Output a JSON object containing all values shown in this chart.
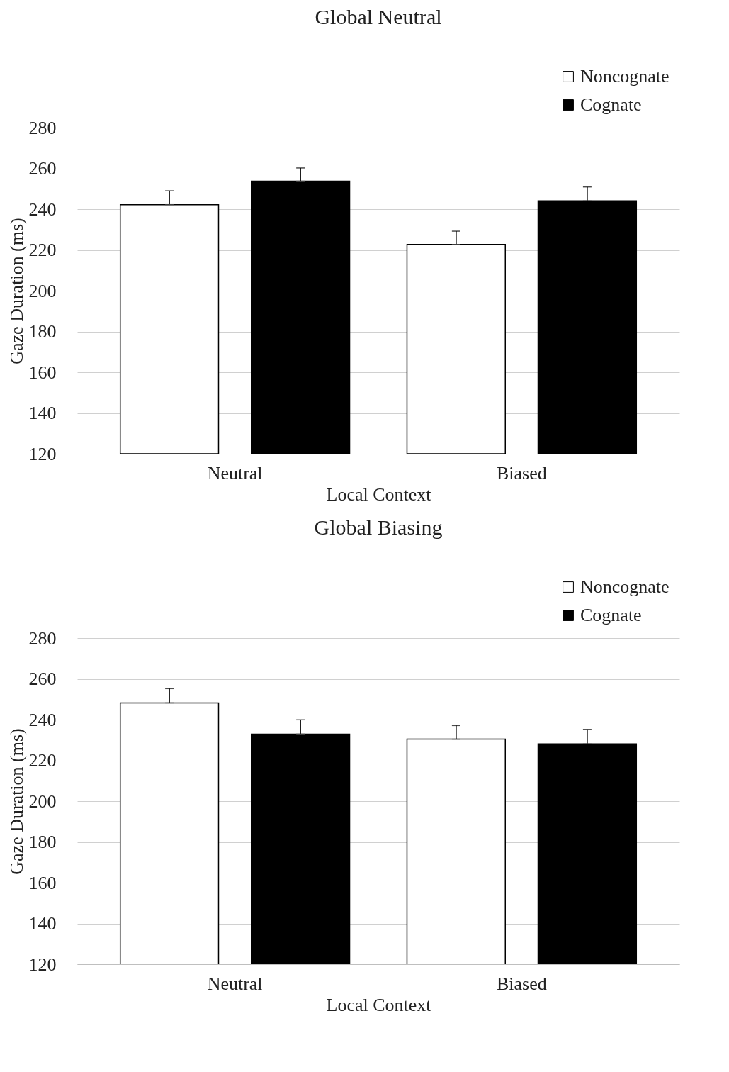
{
  "chart_data": [
    {
      "type": "bar",
      "title": "Global Neutral",
      "xlabel": "Local Context",
      "ylabel": "Gaze Duration (ms)",
      "categories": [
        "Neutral",
        "Biased"
      ],
      "series": [
        {
          "name": "Noncognate",
          "color": "#ffffff",
          "values": [
            242.2,
            222.7
          ],
          "errors": [
            [
              242.2,
              249
            ],
            [
              222.7,
              229.2
            ]
          ]
        },
        {
          "name": "Cognate",
          "color": "#000000",
          "values": [
            253.7,
            244.1
          ],
          "errors": [
            [
              253.7,
              260.2
            ],
            [
              244.1,
              250.9
            ]
          ]
        }
      ],
      "ylim": [
        120,
        280
      ],
      "yticks": [
        120,
        140,
        160,
        180,
        200,
        220,
        240,
        260,
        280
      ],
      "grid": "y",
      "legend": "top right"
    },
    {
      "type": "bar",
      "title": "Global Biasing",
      "xlabel": "Local Context",
      "ylabel": "Gaze Duration (ms)",
      "categories": [
        "Neutral",
        "Biased"
      ],
      "series": [
        {
          "name": "Noncognate",
          "color": "#ffffff",
          "values": [
            248.2,
            230.4
          ],
          "errors": [
            [
              248.2,
              255.2
            ],
            [
              230.4,
              237.1
            ]
          ]
        },
        {
          "name": "Cognate",
          "color": "#000000",
          "values": [
            232.9,
            228.1
          ],
          "errors": [
            [
              232.9,
              239.9
            ],
            [
              228.1,
              235.2
            ]
          ]
        }
      ],
      "ylim": [
        120,
        280
      ],
      "yticks": [
        120,
        140,
        160,
        180,
        200,
        220,
        240,
        260,
        280
      ],
      "grid": "y",
      "legend": "top right"
    }
  ]
}
